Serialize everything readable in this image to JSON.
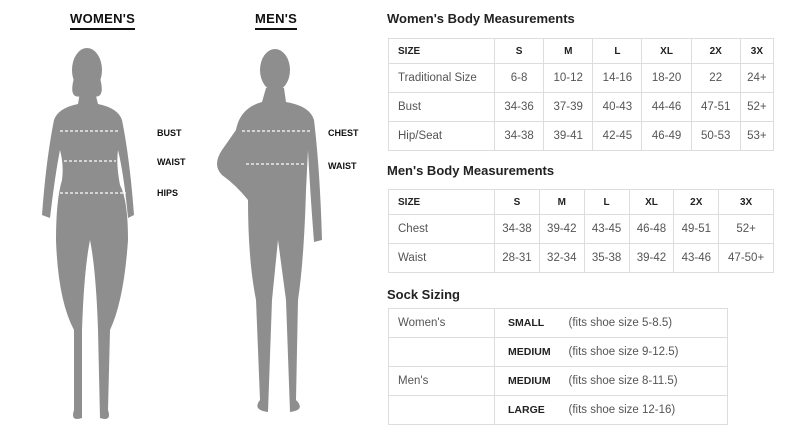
{
  "figures": {
    "womens": {
      "title": "WOMEN'S",
      "labels": [
        "BUST",
        "WAIST",
        "HIPS"
      ]
    },
    "mens": {
      "title": "MEN'S",
      "labels": [
        "CHEST",
        "WAIST"
      ]
    }
  },
  "womens_table": {
    "title": "Women's Body Measurements",
    "headers": [
      "SIZE",
      "S",
      "M",
      "L",
      "XL",
      "2X",
      "3X"
    ],
    "rows": [
      [
        "Traditional Size",
        "6-8",
        "10-12",
        "14-16",
        "18-20",
        "22",
        "24+"
      ],
      [
        "Bust",
        "34-36",
        "37-39",
        "40-43",
        "44-46",
        "47-51",
        "52+"
      ],
      [
        "Hip/Seat",
        "34-38",
        "39-41",
        "42-45",
        "46-49",
        "50-53",
        "53+"
      ]
    ]
  },
  "mens_table": {
    "title": "Men's Body Measurements",
    "headers": [
      "SIZE",
      "S",
      "M",
      "L",
      "XL",
      "2X",
      "3X"
    ],
    "rows": [
      [
        "Chest",
        "34-38",
        "39-42",
        "43-45",
        "46-48",
        "49-51",
        "52+"
      ],
      [
        "Waist",
        "28-31",
        "32-34",
        "35-38",
        "39-42",
        "43-46",
        "47-50+"
      ]
    ]
  },
  "sock_table": {
    "title": "Sock Sizing",
    "rows": [
      [
        "Women's",
        "SMALL",
        "(fits shoe size 5-8.5)"
      ],
      [
        "",
        "MEDIUM",
        "(fits shoe size 9-12.5)"
      ],
      [
        "Men's",
        "MEDIUM",
        "(fits shoe size 8-11.5)"
      ],
      [
        "",
        "LARGE",
        "(fits shoe size 12-16)"
      ]
    ]
  }
}
